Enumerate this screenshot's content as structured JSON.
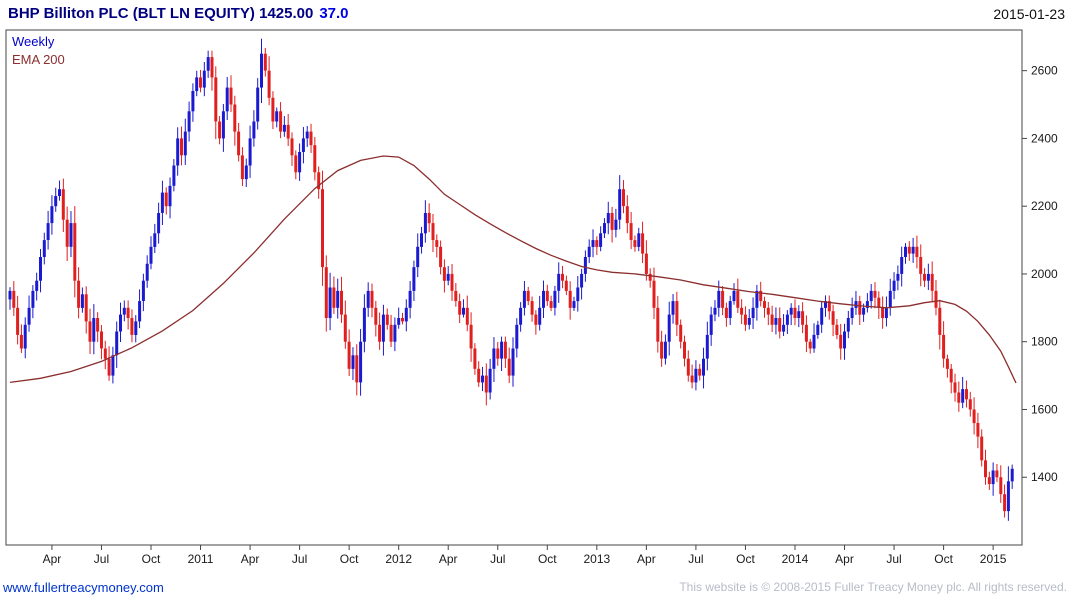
{
  "header": {
    "title": "BHP Billiton PLC (BLT LN EQUITY) 1425.00",
    "change": "37.0",
    "date": "2015-01-23"
  },
  "legend": {
    "series1": "Weekly",
    "series2": "EMA 200"
  },
  "footer": {
    "site_link": "www.fullertreacymoney.com",
    "copyright": "This website is © 2008-2015 Fuller Treacy Money plc. All rights reserved."
  },
  "colors": {
    "up": "#1a1ad0",
    "down": "#e01f1f",
    "ema": "#8b2e2e",
    "frame": "#444444",
    "title": "#000080",
    "change": "#0000e6",
    "link": "#0033cc",
    "copyright": "#b6bdc7"
  },
  "chart_data": {
    "type": "candlestick",
    "interval": "weekly",
    "title": "BHP Billiton PLC (BLT LN EQUITY)",
    "last_price": 1425.0,
    "change": 37.0,
    "date": "2015-01-23",
    "overlay": "EMA 200",
    "grid": false,
    "y_ticks": [
      1400,
      1600,
      1800,
      2000,
      2200,
      2400,
      2600
    ],
    "y_range": [
      1200,
      2720
    ],
    "x_ticks": [
      {
        "label": "Apr",
        "week": 11
      },
      {
        "label": "Jul",
        "week": 24
      },
      {
        "label": "Oct",
        "week": 37
      },
      {
        "label": "2011",
        "week": 50
      },
      {
        "label": "Apr",
        "week": 63
      },
      {
        "label": "Jul",
        "week": 76
      },
      {
        "label": "Oct",
        "week": 89
      },
      {
        "label": "2012",
        "week": 102
      },
      {
        "label": "Apr",
        "week": 115
      },
      {
        "label": "Jul",
        "week": 128
      },
      {
        "label": "Oct",
        "week": 141
      },
      {
        "label": "2013",
        "week": 154
      },
      {
        "label": "Apr",
        "week": 167
      },
      {
        "label": "Jul",
        "week": 180
      },
      {
        "label": "Oct",
        "week": 193
      },
      {
        "label": "2014",
        "week": 206
      },
      {
        "label": "Apr",
        "week": 219
      },
      {
        "label": "Jul",
        "week": 232
      },
      {
        "label": "Oct",
        "week": 245
      },
      {
        "label": "2015",
        "week": 258
      }
    ],
    "weekly_closes": [
      1950,
      1900,
      1820,
      1780,
      1850,
      1900,
      1950,
      1980,
      2050,
      2100,
      2150,
      2200,
      2230,
      2250,
      2160,
      2080,
      2150,
      1980,
      1900,
      1940,
      1860,
      1800,
      1870,
      1830,
      1780,
      1750,
      1700,
      1760,
      1830,
      1880,
      1900,
      1870,
      1820,
      1860,
      1920,
      1980,
      2030,
      2080,
      2120,
      2180,
      2240,
      2200,
      2260,
      2320,
      2400,
      2350,
      2420,
      2480,
      2540,
      2580,
      2550,
      2600,
      2640,
      2580,
      2450,
      2400,
      2480,
      2550,
      2500,
      2420,
      2350,
      2280,
      2320,
      2400,
      2450,
      2550,
      2650,
      2600,
      2520,
      2450,
      2480,
      2420,
      2440,
      2400,
      2350,
      2300,
      2360,
      2400,
      2420,
      2380,
      2300,
      2250,
      2020,
      1870,
      1960,
      1900,
      1950,
      1880,
      1800,
      1720,
      1760,
      1680,
      1800,
      1900,
      1950,
      1900,
      1850,
      1800,
      1880,
      1850,
      1800,
      1850,
      1870,
      1860,
      1900,
      1950,
      2020,
      2080,
      2120,
      2180,
      2150,
      2100,
      2080,
      2020,
      1980,
      2000,
      1950,
      1920,
      1880,
      1900,
      1850,
      1780,
      1720,
      1680,
      1700,
      1650,
      1720,
      1780,
      1750,
      1800,
      1750,
      1700,
      1780,
      1850,
      1900,
      1950,
      1920,
      1880,
      1850,
      1900,
      1950,
      1920,
      1900,
      1950,
      2000,
      1980,
      1950,
      1900,
      1920,
      1960,
      2000,
      2050,
      2080,
      2100,
      2080,
      2120,
      2150,
      2180,
      2130,
      2160,
      2250,
      2200,
      2150,
      2100,
      2080,
      2120,
      2060,
      2000,
      1980,
      1900,
      1800,
      1750,
      1800,
      1880,
      1920,
      1850,
      1800,
      1750,
      1700,
      1680,
      1720,
      1700,
      1750,
      1820,
      1880,
      1900,
      1950,
      1900,
      1870,
      1920,
      1950,
      1900,
      1880,
      1850,
      1870,
      1900,
      1950,
      1920,
      1900,
      1880,
      1850,
      1870,
      1830,
      1850,
      1880,
      1900,
      1870,
      1890,
      1850,
      1800,
      1780,
      1820,
      1850,
      1900,
      1920,
      1890,
      1850,
      1820,
      1780,
      1830,
      1870,
      1900,
      1920,
      1880,
      1900,
      1920,
      1950,
      1930,
      1900,
      1870,
      1900,
      1950,
      1980,
      2000,
      2050,
      2080,
      2060,
      2080,
      2050,
      2000,
      1980,
      2000,
      1950,
      1900,
      1820,
      1750,
      1720,
      1680,
      1650,
      1620,
      1660,
      1630,
      1600,
      1560,
      1520,
      1450,
      1400,
      1380,
      1420,
      1400,
      1350,
      1300,
      1388,
      1425
    ],
    "ema_200_anchors": [
      [
        0,
        1680
      ],
      [
        8,
        1692
      ],
      [
        16,
        1712
      ],
      [
        24,
        1742
      ],
      [
        32,
        1782
      ],
      [
        40,
        1832
      ],
      [
        48,
        1892
      ],
      [
        56,
        1972
      ],
      [
        64,
        2062
      ],
      [
        72,
        2162
      ],
      [
        80,
        2252
      ],
      [
        86,
        2305
      ],
      [
        92,
        2335
      ],
      [
        98,
        2348
      ],
      [
        102,
        2345
      ],
      [
        106,
        2320
      ],
      [
        110,
        2280
      ],
      [
        114,
        2235
      ],
      [
        118,
        2205
      ],
      [
        122,
        2175
      ],
      [
        126,
        2148
      ],
      [
        130,
        2122
      ],
      [
        134,
        2098
      ],
      [
        138,
        2075
      ],
      [
        142,
        2055
      ],
      [
        146,
        2038
      ],
      [
        150,
        2022
      ],
      [
        154,
        2012
      ],
      [
        158,
        2005
      ],
      [
        164,
        2000
      ],
      [
        170,
        1992
      ],
      [
        176,
        1982
      ],
      [
        182,
        1968
      ],
      [
        188,
        1958
      ],
      [
        194,
        1948
      ],
      [
        200,
        1940
      ],
      [
        206,
        1930
      ],
      [
        212,
        1920
      ],
      [
        218,
        1912
      ],
      [
        224,
        1905
      ],
      [
        230,
        1900
      ],
      [
        236,
        1906
      ],
      [
        240,
        1915
      ],
      [
        244,
        1921
      ],
      [
        248,
        1910
      ],
      [
        251,
        1890
      ],
      [
        254,
        1860
      ],
      [
        257,
        1820
      ],
      [
        260,
        1772
      ],
      [
        262,
        1726
      ],
      [
        264,
        1678
      ]
    ]
  }
}
